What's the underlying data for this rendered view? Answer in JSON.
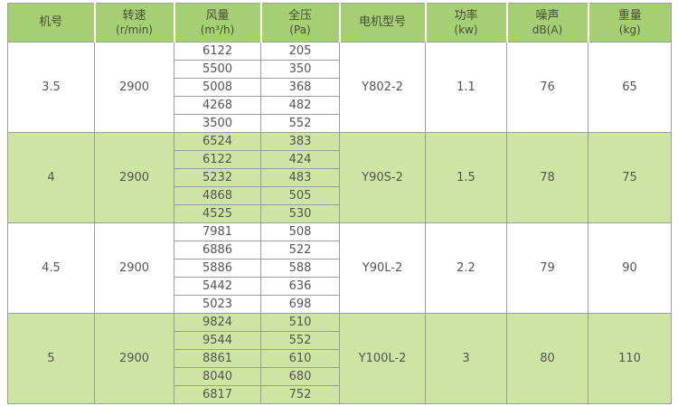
{
  "table": {
    "headers": [
      {
        "key": "model-no",
        "title": "机号",
        "unit": ""
      },
      {
        "key": "speed",
        "title": "转速",
        "unit": "(r/min)"
      },
      {
        "key": "airflow",
        "title": "风量",
        "unit": "(m³/h)"
      },
      {
        "key": "pressure",
        "title": "全压",
        "unit": "(Pa)"
      },
      {
        "key": "motor",
        "title": "电机型号",
        "unit": ""
      },
      {
        "key": "power",
        "title": "功率",
        "unit": "(kw)"
      },
      {
        "key": "noise",
        "title": "噪声",
        "unit": "dB(A)"
      },
      {
        "key": "weight",
        "title": "重量",
        "unit": "(kg)"
      }
    ],
    "groups": [
      {
        "model_no": "3.5",
        "speed": "2900",
        "motor": "Y802-2",
        "power": "1.1",
        "noise": "76",
        "weight": "65",
        "rows": [
          {
            "airflow": "6122",
            "pressure": "205"
          },
          {
            "airflow": "5500",
            "pressure": "350"
          },
          {
            "airflow": "5008",
            "pressure": "368"
          },
          {
            "airflow": "4268",
            "pressure": "482"
          },
          {
            "airflow": "3500",
            "pressure": "552"
          }
        ]
      },
      {
        "model_no": "4",
        "speed": "2900",
        "motor": "Y90S-2",
        "power": "1.5",
        "noise": "78",
        "weight": "75",
        "rows": [
          {
            "airflow": "6524",
            "pressure": "383"
          },
          {
            "airflow": "6122",
            "pressure": "424"
          },
          {
            "airflow": "5232",
            "pressure": "483"
          },
          {
            "airflow": "4868",
            "pressure": "505"
          },
          {
            "airflow": "4525",
            "pressure": "530"
          }
        ]
      },
      {
        "model_no": "4.5",
        "speed": "2900",
        "motor": "Y90L-2",
        "power": "2.2",
        "noise": "79",
        "weight": "90",
        "rows": [
          {
            "airflow": "7981",
            "pressure": "508"
          },
          {
            "airflow": "6886",
            "pressure": "522"
          },
          {
            "airflow": "5886",
            "pressure": "588"
          },
          {
            "airflow": "5442",
            "pressure": "636"
          },
          {
            "airflow": "5023",
            "pressure": "698"
          }
        ]
      },
      {
        "model_no": "5",
        "speed": "2900",
        "motor": "Y100L-2",
        "power": "3",
        "noise": "80",
        "weight": "110",
        "rows": [
          {
            "airflow": "9824",
            "pressure": "510"
          },
          {
            "airflow": "9544",
            "pressure": "552"
          },
          {
            "airflow": "8861",
            "pressure": "610"
          },
          {
            "airflow": "8040",
            "pressure": "680"
          },
          {
            "airflow": "6817",
            "pressure": "752"
          }
        ]
      }
    ],
    "colors": {
      "header_bg": "#a6cf74",
      "band_bg": "#cde4a2",
      "border": "#9c9c9c",
      "text": "#545454",
      "header_text": "#474f38"
    }
  }
}
